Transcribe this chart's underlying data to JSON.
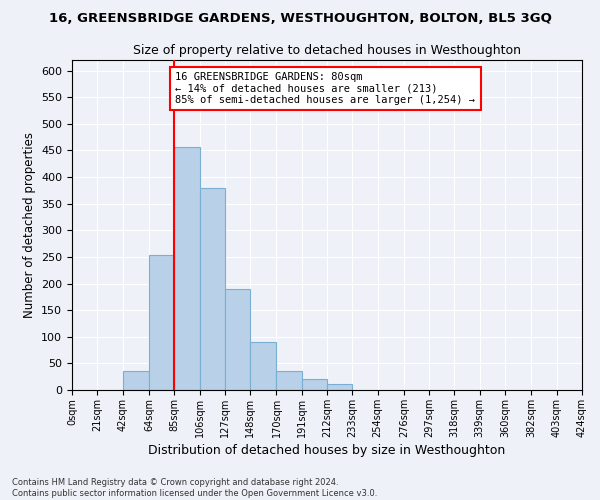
{
  "title": "16, GREENSBRIDGE GARDENS, WESTHOUGHTON, BOLTON, BL5 3GQ",
  "subtitle": "Size of property relative to detached houses in Westhoughton",
  "xlabel": "Distribution of detached houses by size in Westhoughton",
  "ylabel": "Number of detached properties",
  "bin_edges": [
    0,
    21,
    42,
    64,
    85,
    106,
    127,
    148,
    170,
    191,
    212,
    233,
    254,
    276,
    297,
    318,
    339,
    360,
    382,
    403,
    424
  ],
  "bin_labels": [
    "0sqm",
    "21sqm",
    "42sqm",
    "64sqm",
    "85sqm",
    "106sqm",
    "127sqm",
    "148sqm",
    "170sqm",
    "191sqm",
    "212sqm",
    "233sqm",
    "254sqm",
    "276sqm",
    "297sqm",
    "318sqm",
    "339sqm",
    "360sqm",
    "382sqm",
    "403sqm",
    "424sqm"
  ],
  "counts": [
    0,
    0,
    35,
    253,
    457,
    380,
    190,
    90,
    35,
    20,
    12,
    0,
    0,
    0,
    0,
    0,
    0,
    0,
    0,
    0
  ],
  "bar_color": "#b8d0e8",
  "bar_edgecolor": "#7aafd4",
  "vline_x": 85,
  "ylim": [
    0,
    620
  ],
  "yticks": [
    0,
    50,
    100,
    150,
    200,
    250,
    300,
    350,
    400,
    450,
    500,
    550,
    600
  ],
  "annotation_line1": "16 GREENSBRIDGE GARDENS: 80sqm",
  "annotation_line2": "← 14% of detached houses are smaller (213)",
  "annotation_line3": "85% of semi-detached houses are larger (1,254) →",
  "footer_line1": "Contains HM Land Registry data © Crown copyright and database right 2024.",
  "footer_line2": "Contains public sector information licensed under the Open Government Licence v3.0.",
  "background_color": "#eef2f8",
  "grid_color": "#ffffff"
}
